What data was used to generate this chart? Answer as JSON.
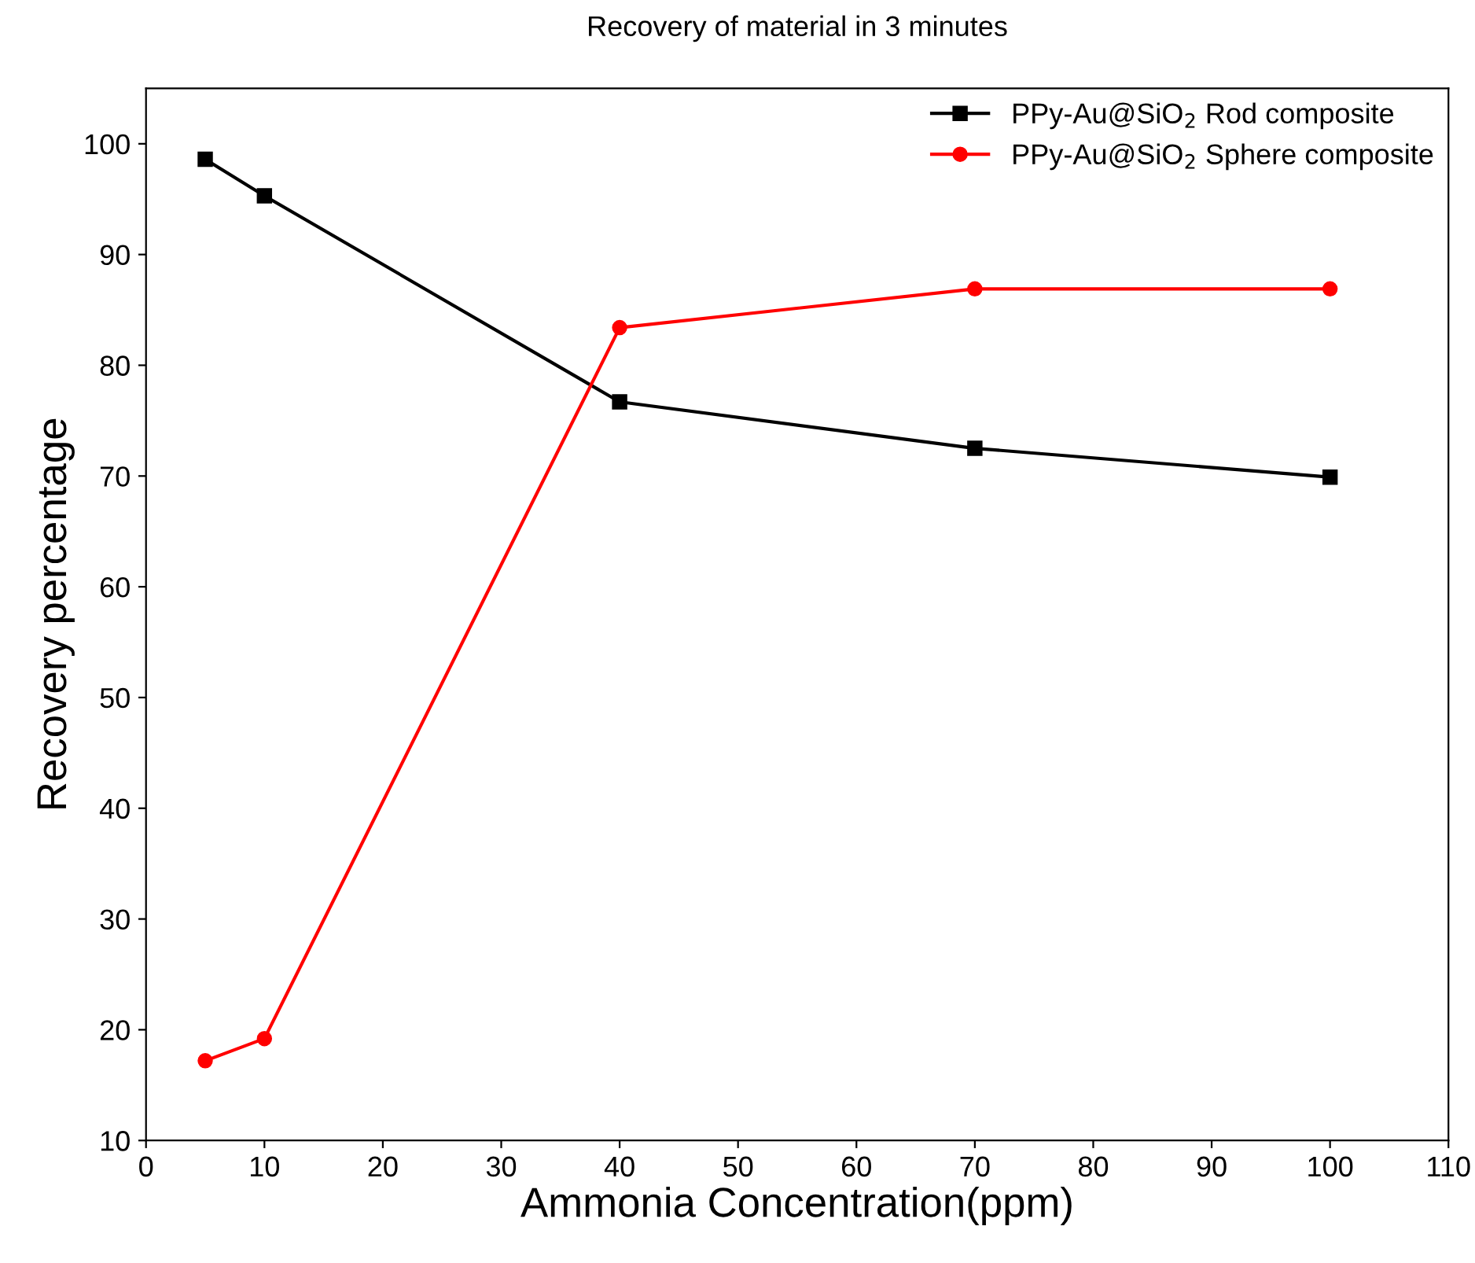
{
  "chart_data": {
    "type": "line",
    "title": "Recovery of material in 3 minutes",
    "xlabel": "Ammonia Concentration(ppm)",
    "ylabel": "Recovery percentage",
    "x": [
      5,
      10,
      40,
      70,
      100
    ],
    "series": [
      {
        "name": "PPy-Au@SiO$_{2}$ Rod composite",
        "color": "#000000",
        "marker": "square",
        "values": [
          98.6,
          95.3,
          76.7,
          72.5,
          69.9
        ]
      },
      {
        "name": "PPy-Au@SiO$_{2}$ Sphere composite",
        "color": "#ff0000",
        "marker": "circle",
        "values": [
          17.2,
          19.2,
          83.4,
          86.9,
          86.9
        ]
      }
    ],
    "xlim": [
      0,
      110
    ],
    "xticks": [
      0,
      10,
      20,
      30,
      40,
      50,
      60,
      70,
      80,
      90,
      100,
      110
    ],
    "ylim": [
      10,
      105
    ],
    "yticks": [
      10,
      20,
      30,
      40,
      50,
      60,
      70,
      80,
      90,
      100
    ],
    "grid": false,
    "legend": "top right",
    "line_style": "solid"
  }
}
